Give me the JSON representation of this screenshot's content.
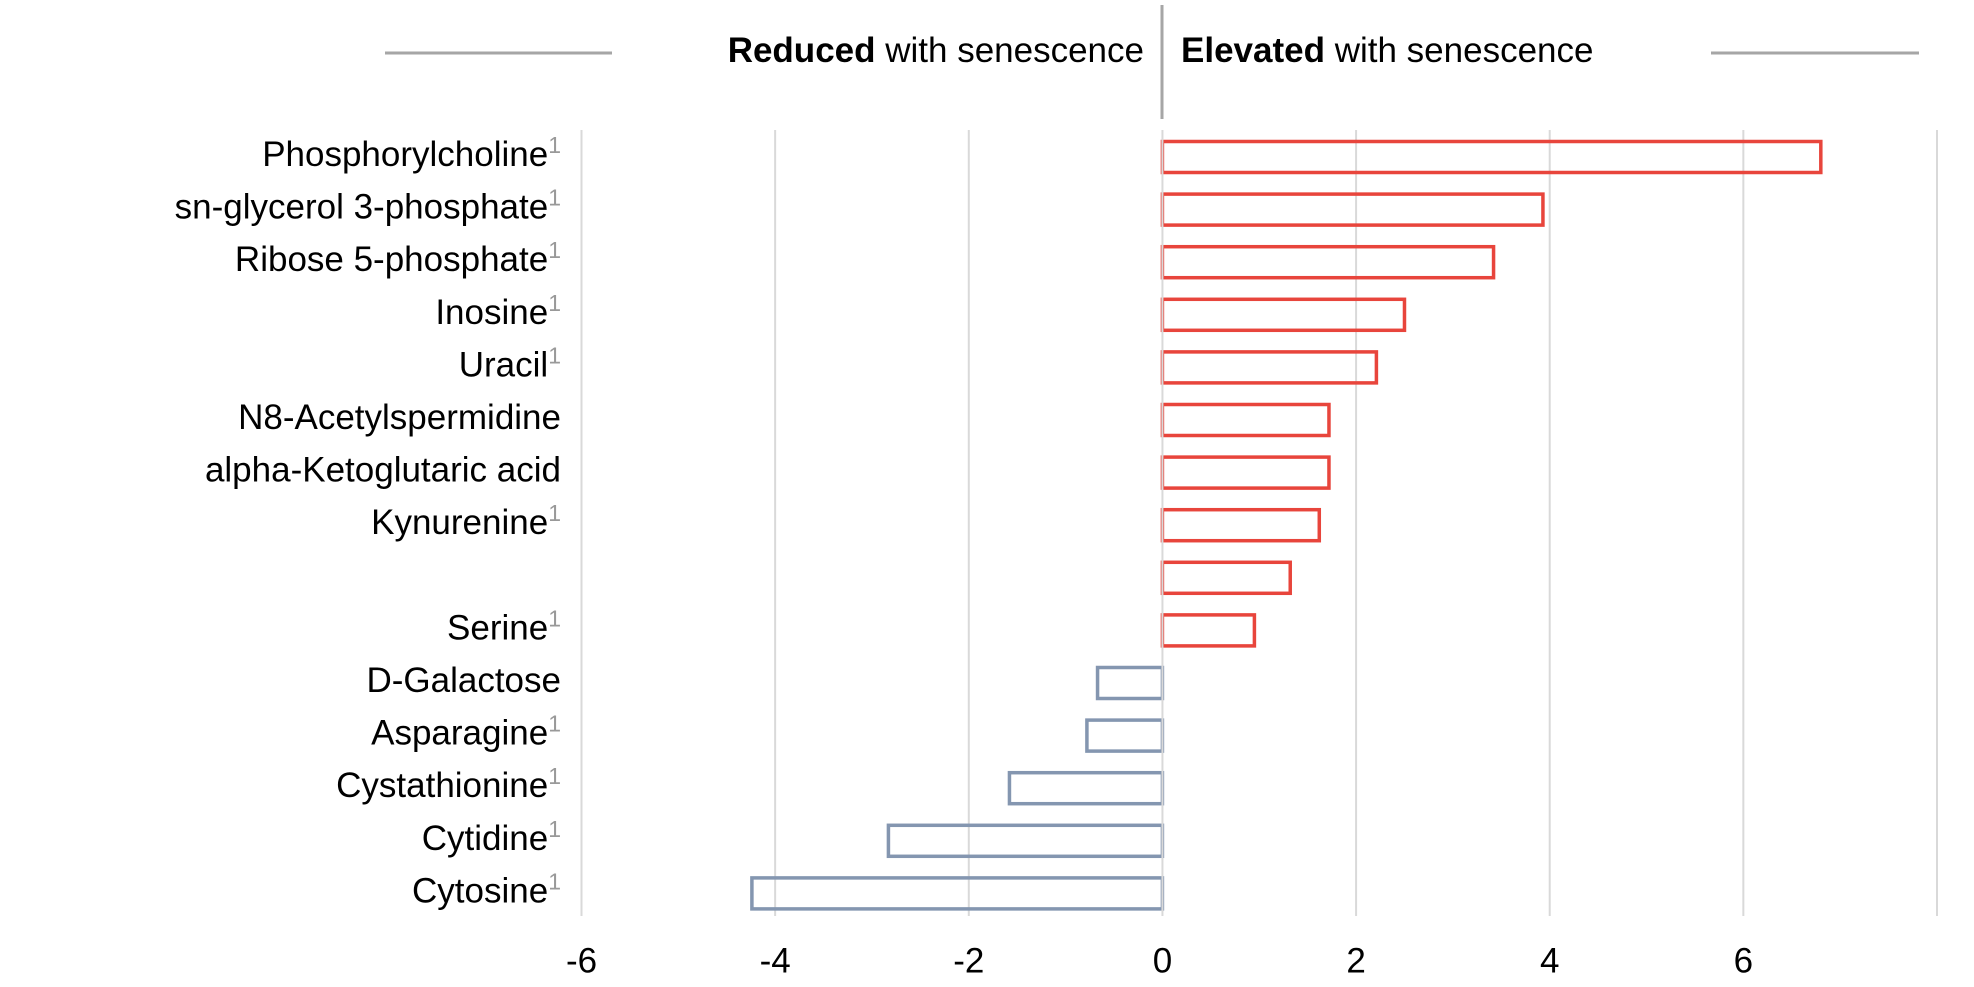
{
  "chart_data": {
    "type": "bar",
    "orientation": "horizontal",
    "header_left": {
      "bold": "Reduced",
      "rest": "with senescence"
    },
    "header_right": {
      "bold": "Elevated",
      "rest": "with senescence"
    },
    "categories": [
      "Phosphorylcholine",
      "sn-glycerol 3-phosphate",
      "Ribose 5-phosphate",
      "Inosine",
      "Uracil",
      "N8-Acetylspermidine",
      "alpha-Ketoglutaric acid",
      "Kynurenine",
      null,
      "Serine",
      "D-Galactose",
      "Asparagine",
      "Cystathionine",
      "Cytidine",
      "Cytosine"
    ],
    "category_notes": [
      "1",
      "1",
      "1",
      "1",
      "1",
      null,
      null,
      "1",
      null,
      "1",
      null,
      "1",
      "1",
      "1",
      "1"
    ],
    "values": [
      6.8,
      3.93,
      3.42,
      2.5,
      2.21,
      1.72,
      1.72,
      1.62,
      1.32,
      0.95,
      -0.67,
      -0.78,
      -1.58,
      -2.83,
      -4.24
    ],
    "positive_color": "#e8453c",
    "negative_color": "#8496b0",
    "xlim": [
      -6,
      8
    ],
    "xticks": [
      -6,
      -4,
      -2,
      0,
      2,
      4,
      6
    ],
    "grid": true
  }
}
